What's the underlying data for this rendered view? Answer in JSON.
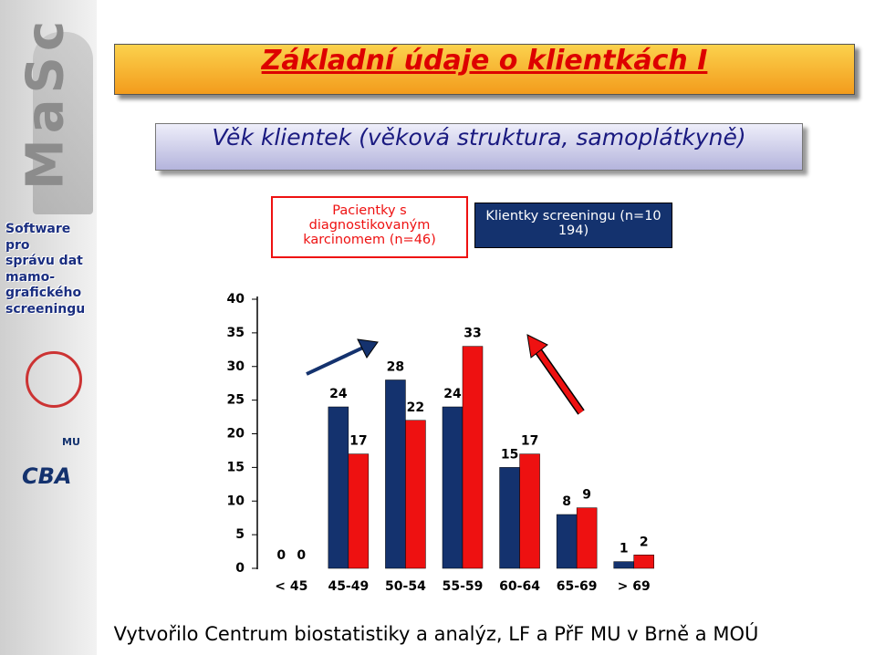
{
  "header": {
    "title": "Základní údaje o klientkách I"
  },
  "sidebar": {
    "brand": "MaSc",
    "lines": [
      "Software",
      "pro",
      "správu dat",
      "mamo-",
      "grafického",
      "screeningu"
    ],
    "logo_mu": "MU",
    "logo_cba": "CBA"
  },
  "chart_data": {
    "type": "bar",
    "title": "Věk klientek (věková struktura, samoplátkyně)",
    "categories": [
      "< 45",
      "45-49",
      "50-54",
      "55-59",
      "60-64",
      "65-69",
      "> 69"
    ],
    "series": [
      {
        "name": "Klientky screeningu (n=10 194)",
        "color": "#14326e",
        "values": [
          0,
          24,
          28,
          24,
          15,
          8,
          1
        ]
      },
      {
        "name": "Pacientky s diagnostikovaným karcinomem (n=46)",
        "color": "#ee1111",
        "values": [
          0,
          17,
          22,
          33,
          17,
          9,
          2
        ]
      }
    ],
    "ylim": [
      0,
      40
    ],
    "yticks": [
      0,
      5,
      10,
      15,
      20,
      25,
      30,
      35,
      40
    ],
    "grid": false
  },
  "footer": "Vytvořilo Centrum biostatistiky a analýz, LF a PřF MU v Brně a MOÚ"
}
